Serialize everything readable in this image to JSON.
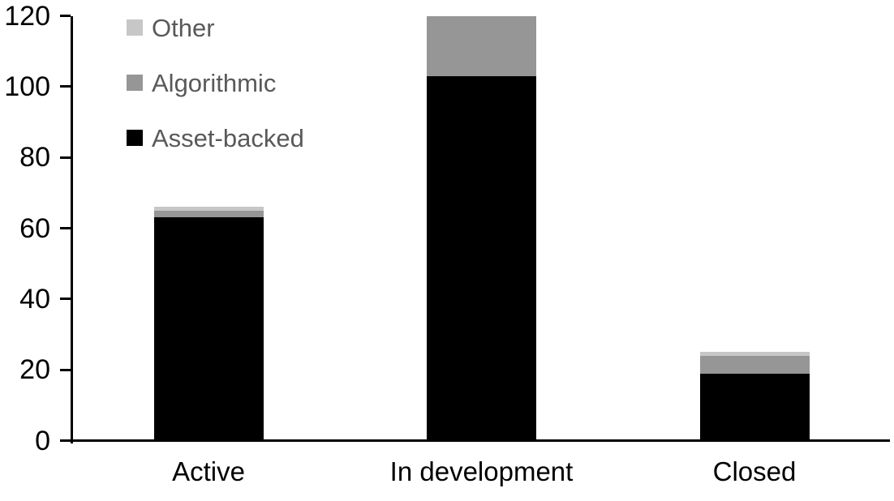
{
  "chart_data": {
    "type": "bar",
    "stacked": true,
    "title": "",
    "xlabel": "",
    "ylabel": "",
    "categories": [
      "Active",
      "In development",
      "Closed"
    ],
    "series": [
      {
        "name": "Asset-backed",
        "color": "#000000",
        "values": [
          63,
          103,
          19
        ]
      },
      {
        "name": "Algorithmic",
        "color": "#969696",
        "values": [
          2,
          17,
          5
        ]
      },
      {
        "name": "Other",
        "color": "#c7c7c7",
        "values": [
          1,
          0,
          1
        ]
      }
    ],
    "stack_totals": [
      66,
      120,
      25
    ],
    "yticks": [
      0,
      20,
      40,
      60,
      80,
      100,
      120
    ],
    "ylim": [
      0,
      120
    ],
    "grid": false,
    "axis_color": "#000000",
    "text_color": "#000000",
    "legend": {
      "position": "top-left-inside",
      "order": [
        "Other",
        "Algorithmic",
        "Asset-backed"
      ],
      "text_color": "#595959"
    }
  }
}
